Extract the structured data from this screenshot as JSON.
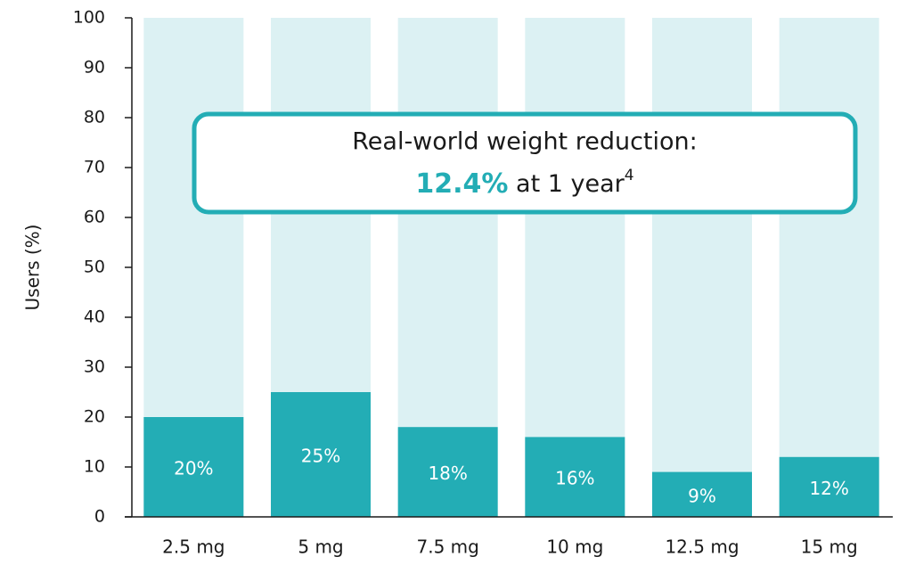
{
  "chart_data": {
    "type": "bar",
    "y_label": "Users (%)",
    "categories": [
      "2.5 mg",
      "5 mg",
      "7.5 mg",
      "10 mg",
      "12.5 mg",
      "15 mg"
    ],
    "values": [
      20,
      25,
      18,
      16,
      9,
      12
    ],
    "value_labels": [
      "20%",
      "25%",
      "18%",
      "16%",
      "9%",
      "12%"
    ],
    "color": "#23adb5",
    "track_color": "#dcf1f3",
    "ylim": [
      0,
      100
    ],
    "yticks": [
      0,
      10,
      20,
      30,
      40,
      50,
      60,
      70,
      80,
      90,
      100
    ],
    "annotation": {
      "line1": "Real-world weight reduction:",
      "highlight": "12.4%",
      "rest": " at 1 year",
      "superscript": "4"
    }
  }
}
